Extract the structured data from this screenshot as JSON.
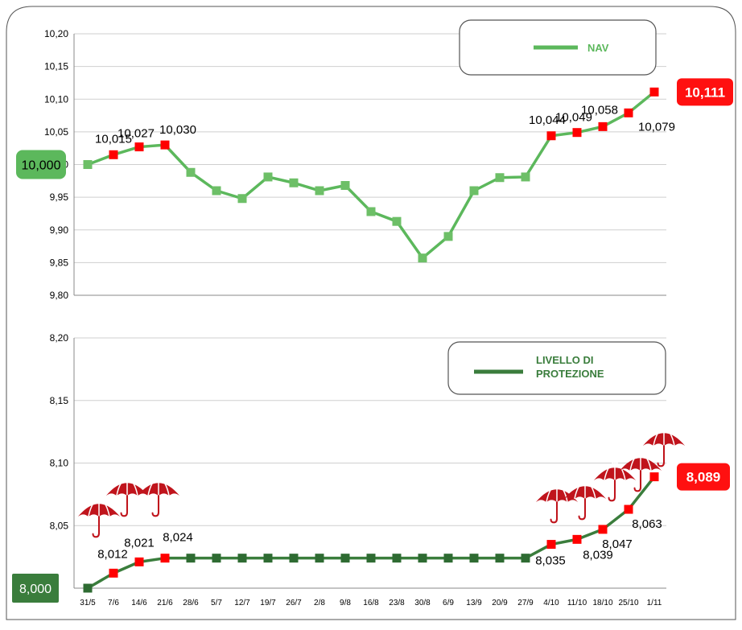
{
  "colors": {
    "nav_line": "#5cb85c",
    "nav_marker": "#6dbf67",
    "protection_line": "#3a7d3c",
    "protection_marker": "#2e6b32",
    "highlight_marker": "#ff0000",
    "badge_red": "#ff1010",
    "badge_green": "#5cb85c",
    "badge_dark_green": "#3a7d3c",
    "umbrella": "#c0141c"
  },
  "chart_data": [
    {
      "type": "line",
      "title": "",
      "xlabel": "",
      "ylabel": "",
      "categories": [
        "31/5",
        "7/6",
        "14/6",
        "21/6",
        "28/6",
        "5/7",
        "12/7",
        "19/7",
        "26/7",
        "2/8",
        "9/8",
        "16/8",
        "23/8",
        "30/8",
        "6/9",
        "13/9",
        "20/9",
        "27/9",
        "4/10",
        "11/10",
        "18/10",
        "25/10",
        "1/11"
      ],
      "ylim": [
        9.8,
        10.2
      ],
      "yticks": [
        "9,80",
        "9,85",
        "9,90",
        "9,95",
        "10,00",
        "10,05",
        "10,10",
        "10,15",
        "10,20"
      ],
      "legend": {
        "position": "top-right",
        "label": "NAV"
      },
      "series": [
        {
          "name": "NAV",
          "values": [
            10.0,
            10.015,
            10.027,
            10.03,
            9.988,
            9.96,
            9.948,
            9.981,
            9.972,
            9.96,
            9.968,
            9.928,
            9.913,
            9.857,
            9.89,
            9.96,
            9.98,
            9.981,
            10.044,
            10.049,
            10.058,
            10.079,
            10.111
          ]
        }
      ],
      "highlighted_points": [
        1,
        2,
        3,
        18,
        19,
        20,
        21,
        22
      ],
      "data_labels": {
        "1": "10,015",
        "2": "10,027",
        "3": "10,030",
        "18": "10,044",
        "19": "10,049",
        "20": "10,058",
        "21": "10,079"
      },
      "start_badge": "10,000",
      "end_badge": "10,111"
    },
    {
      "type": "line",
      "title": "",
      "xlabel": "",
      "ylabel": "",
      "categories": [
        "31/5",
        "7/6",
        "14/6",
        "21/6",
        "28/6",
        "5/7",
        "12/7",
        "19/7",
        "26/7",
        "2/8",
        "9/8",
        "16/8",
        "23/8",
        "30/8",
        "6/9",
        "13/9",
        "20/9",
        "27/9",
        "4/10",
        "11/10",
        "18/10",
        "25/10",
        "1/11"
      ],
      "ylim": [
        8.0,
        8.2
      ],
      "yticks": [
        "8,05",
        "8,10",
        "8,15",
        "8,20"
      ],
      "legend": {
        "position": "top-right",
        "label": "LIVELLO DI PROTEZIONE"
      },
      "series": [
        {
          "name": "LIVELLO DI PROTEZIONE",
          "values": [
            8.0,
            8.012,
            8.021,
            8.024,
            8.024,
            8.024,
            8.024,
            8.024,
            8.024,
            8.024,
            8.024,
            8.024,
            8.024,
            8.024,
            8.024,
            8.024,
            8.024,
            8.024,
            8.035,
            8.039,
            8.047,
            8.063,
            8.089
          ]
        }
      ],
      "highlighted_points": [
        1,
        2,
        3,
        18,
        19,
        20,
        21,
        22
      ],
      "data_labels": {
        "1": "8,012",
        "2": "8,021",
        "3": "8,024",
        "18": "8,035",
        "19": "8,039",
        "20": "8,047",
        "21": "8,063"
      },
      "umbrella_points": [
        1,
        2,
        3,
        18,
        19,
        20,
        21,
        22
      ],
      "start_badge": "8,000",
      "end_badge": "8,089"
    }
  ]
}
